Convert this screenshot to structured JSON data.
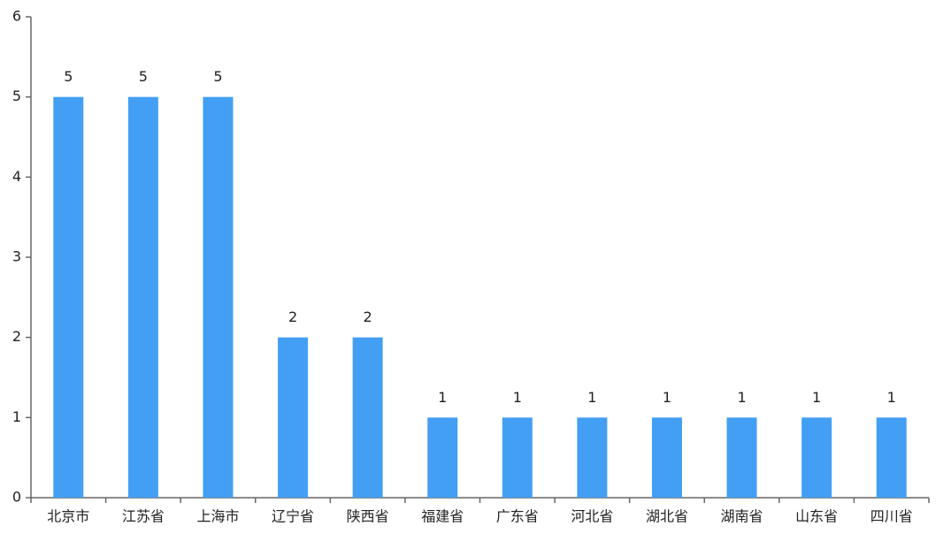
{
  "chart_data": {
    "type": "bar",
    "categories": [
      "北京市",
      "江苏省",
      "上海市",
      "辽宁省",
      "陕西省",
      "福建省",
      "广东省",
      "河北省",
      "湖北省",
      "湖南省",
      "山东省",
      "四川省"
    ],
    "values": [
      5,
      5,
      5,
      2,
      2,
      1,
      1,
      1,
      1,
      1,
      1,
      1
    ],
    "color": "#439ff4",
    "ylim": [
      0,
      6
    ],
    "yticks": [
      0,
      1,
      2,
      3,
      4,
      5,
      6
    ],
    "grid": false
  }
}
